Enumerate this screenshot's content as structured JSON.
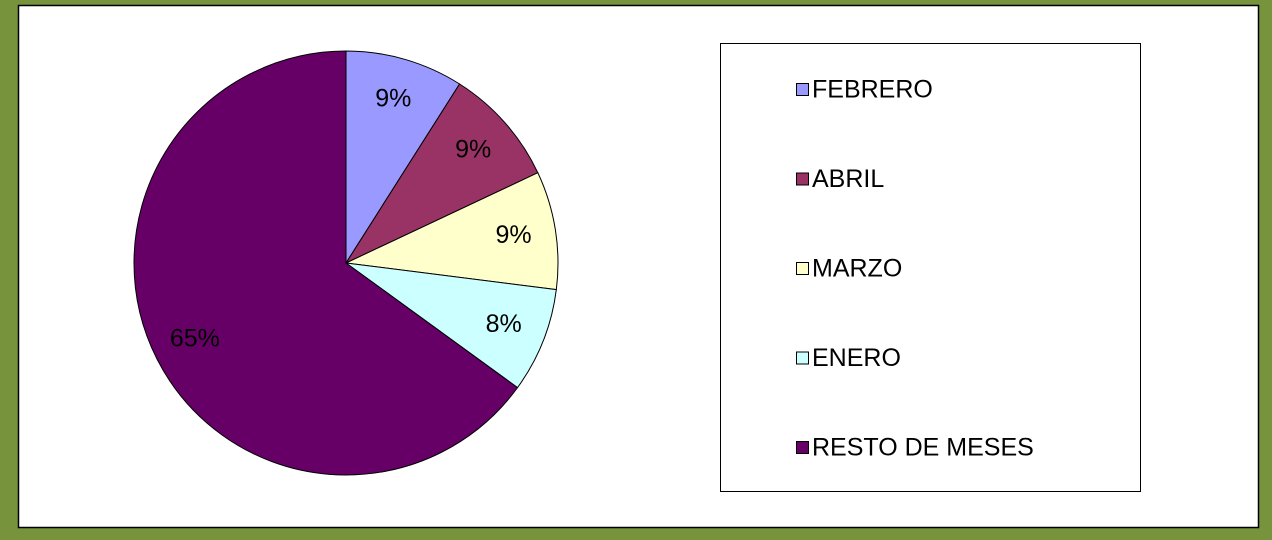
{
  "chart_data": {
    "type": "pie",
    "categories": [
      "FEBRERO",
      "ABRIL",
      "MARZO",
      "ENERO",
      "RESTO DE MESES"
    ],
    "values": [
      9,
      9,
      9,
      8,
      65
    ],
    "value_labels": [
      "9%",
      "9%",
      "9%",
      "8%",
      "65%"
    ],
    "colors": [
      "#9999ff",
      "#993366",
      "#ffffcc",
      "#ccffff",
      "#660066"
    ],
    "legend": "right"
  }
}
